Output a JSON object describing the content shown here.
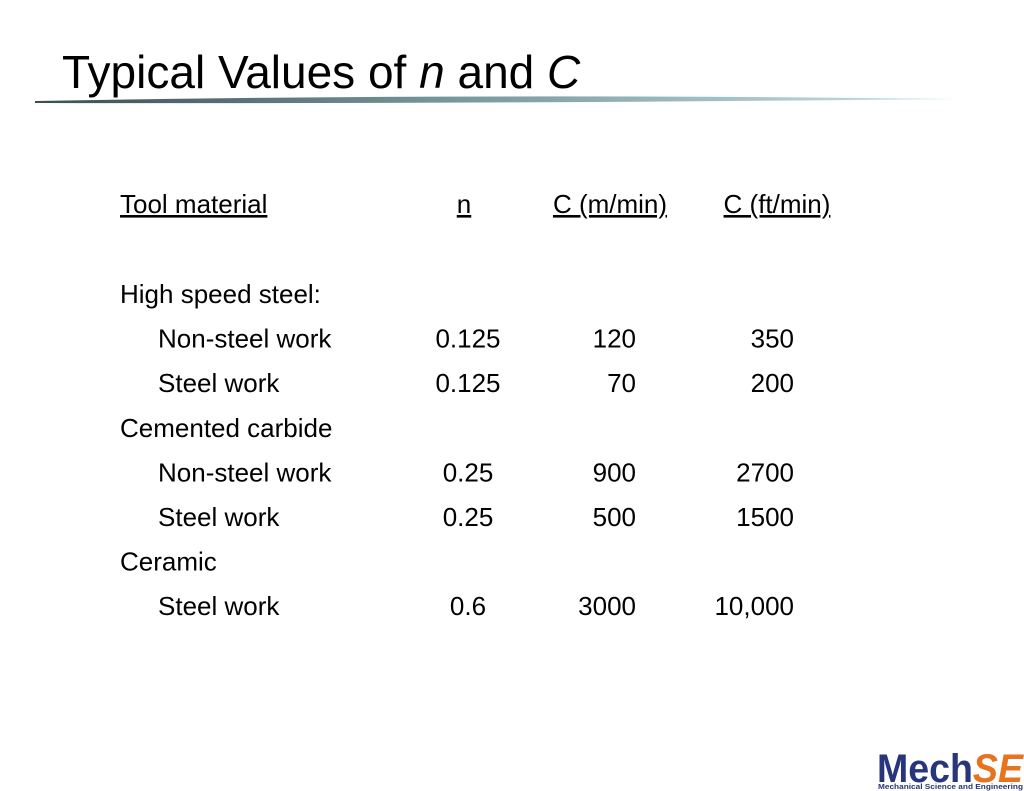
{
  "title": {
    "parts": [
      "Typical Values of ",
      "n",
      " and ",
      "C"
    ]
  },
  "table": {
    "headers": [
      "Tool material",
      "n",
      "C (m/min)",
      "C (ft/min)"
    ],
    "groups": [
      {
        "label": "High speed steel:",
        "rows": [
          [
            "Non-steel work",
            "0.125",
            "120",
            "350"
          ],
          [
            "Steel work",
            "0.125",
            "70",
            "200"
          ]
        ]
      },
      {
        "label": "Cemented carbide",
        "rows": [
          [
            "Non-steel work",
            "0.25",
            "900",
            "2700"
          ],
          [
            "Steel work",
            "0.25",
            "500",
            "1500"
          ]
        ]
      },
      {
        "label": "Ceramic",
        "rows": [
          [
            "Steel work",
            "0.6",
            "3000",
            "10,000"
          ]
        ]
      }
    ]
  },
  "logo": {
    "brand_main": "Mech",
    "brand_accent": "SE",
    "tagline": "Mechanical Science and Engineering"
  }
}
